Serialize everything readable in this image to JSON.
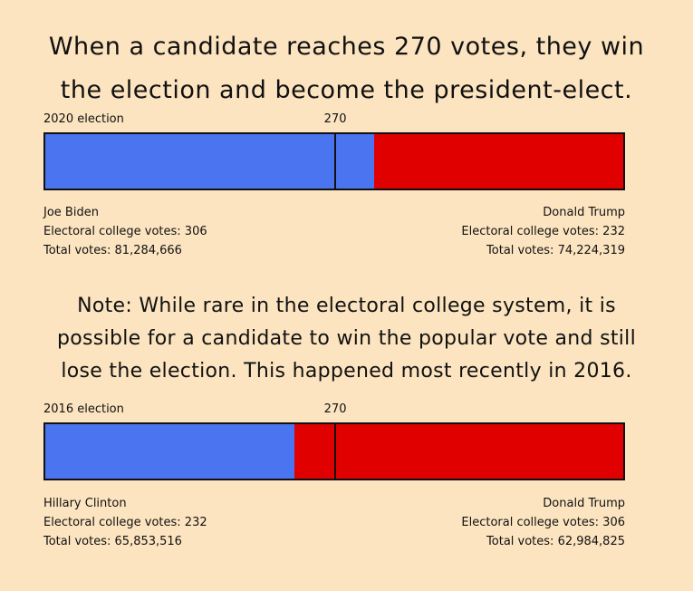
{
  "title_lines": [
    "When a candidate reaches 270 votes, they win",
    "the election and become the president-elect."
  ],
  "note_lines": [
    "Note: While rare in the electoral college system, it is",
    "possible for a candidate to win the popular vote and still",
    "lose the election. This happened most recently in 2016."
  ],
  "colors": {
    "dem": "#4a74f0",
    "rep": "#e00000",
    "background": "#fce4c0"
  },
  "chart_data": [
    {
      "type": "bar",
      "title": "2020 election",
      "threshold": 270,
      "threshold_label": "270",
      "total": 538,
      "series": [
        {
          "name": "Joe Biden",
          "value": 306,
          "color": "#4a74f0",
          "ec_label": "Electoral college votes: 306",
          "pop_label": "Total votes: 81,284,666"
        },
        {
          "name": "Donald Trump",
          "value": 232,
          "color": "#e00000",
          "ec_label": "Electoral college votes: 232",
          "pop_label": "Total votes: 74,224,319"
        }
      ]
    },
    {
      "type": "bar",
      "title": "2016 election",
      "threshold": 270,
      "threshold_label": "270",
      "total": 538,
      "series": [
        {
          "name": "Hillary Clinton",
          "value": 232,
          "color": "#4a74f0",
          "ec_label": "Electoral college votes: 232",
          "pop_label": "Total votes: 65,853,516"
        },
        {
          "name": "Donald Trump",
          "value": 306,
          "color": "#e00000",
          "ec_label": "Electoral college votes: 306",
          "pop_label": "Total votes: 62,984,825"
        }
      ]
    }
  ]
}
